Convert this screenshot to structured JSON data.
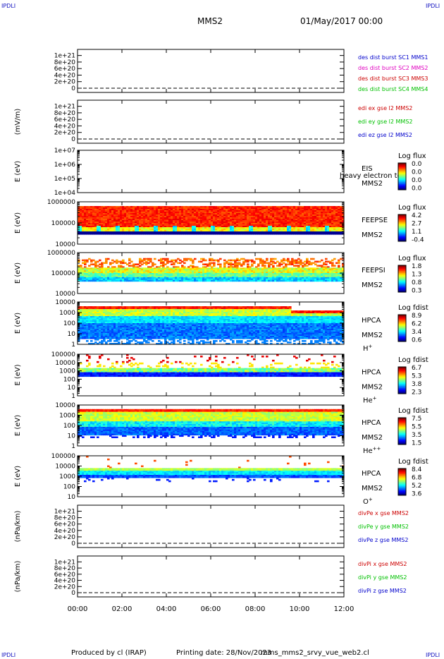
{
  "header": {
    "spacecraft": "MMS2",
    "datetime": "01/May/2017 00:00",
    "corner_label": "IPDLI"
  },
  "footer": {
    "produced_by": "Produced by cl (IRAP)",
    "printing_date": "Printing date: 28/Nov/2023",
    "script_name": "mms_mms2_srvy_vue_web2.cl"
  },
  "colors": {
    "red": "#cc0000",
    "magenta": "#e000c0",
    "green": "#00c000",
    "blue": "#0000cc",
    "axis": "#000000"
  },
  "x_axis": {
    "ticks": [
      "00:00",
      "02:00",
      "04:00",
      "06:00",
      "08:00",
      "10:00",
      "12:00"
    ],
    "range_hours": [
      0,
      12
    ]
  },
  "chart_data": [
    {
      "type": "line",
      "scale": "linear",
      "ylabel": "",
      "yticks": [
        "1e+21",
        "8e+20",
        "6e+20",
        "4e+20",
        "2e+20",
        "0"
      ],
      "ylim": [
        0,
        1.1e+21
      ],
      "legend": [
        {
          "text": "des dist burst SC1 MMS1",
          "color": "blue"
        },
        {
          "text": "des dist burst SC2 MMS2",
          "color": "magenta"
        },
        {
          "text": "des dist burst SC3 MMS3",
          "color": "red"
        },
        {
          "text": "des dist burst SC4 MMS4",
          "color": "green"
        }
      ],
      "zero_dashed": true
    },
    {
      "type": "line",
      "scale": "linear",
      "ylabel": "(mV/m)",
      "yticks": [
        "1e+21",
        "8e+20",
        "6e+20",
        "4e+20",
        "2e+20",
        "0"
      ],
      "ylim": [
        0,
        1.1e+21
      ],
      "legend": [
        {
          "text": "edi ex gse l2 MMS2",
          "color": "red"
        },
        {
          "text": "edi ey gse l2 MMS2",
          "color": "green"
        },
        {
          "text": "edi ez gse l2 MMS2",
          "color": "blue"
        }
      ],
      "zero_dashed": true
    },
    {
      "type": "heatmap",
      "scale": "log",
      "ylabel": "E (eV)",
      "yticks": [
        "1e+07",
        "1e+06",
        "1e+05",
        "1e+04"
      ],
      "instrument": "EIS",
      "sc": "MMS2",
      "overlay_text": "heavy electron tof",
      "cbar_title": "Log flux",
      "cbar_ticks": [
        "0.0",
        "0.0",
        "0.0",
        "0.0"
      ],
      "pattern": "empty"
    },
    {
      "type": "heatmap",
      "scale": "log",
      "ylabel": "E (eV)",
      "yticks": [
        "1000000",
        "100000",
        "10000"
      ],
      "instrument": "FEEPSE",
      "sc": "MMS2",
      "cbar_title": "Log flux",
      "cbar_ticks": [
        "4.2",
        "2.7",
        "1.1",
        "-0.4"
      ],
      "pattern": "feepse"
    },
    {
      "type": "heatmap",
      "scale": "log",
      "ylabel": "E (eV)",
      "yticks": [
        "1000000",
        "100000",
        "10000"
      ],
      "instrument": "FEEPSI",
      "sc": "MMS2",
      "cbar_title": "Log flux",
      "cbar_ticks": [
        "1.8",
        "1.3",
        "0.8",
        "0.3"
      ],
      "pattern": "feepsi"
    },
    {
      "type": "heatmap",
      "scale": "log",
      "ylabel": "E (eV)",
      "yticks": [
        "10000",
        "1000",
        "100",
        "10",
        "1"
      ],
      "instrument": "HPCA",
      "sc": "MMS2",
      "species": "H",
      "charge": "+",
      "cbar_title": "Log fdist",
      "cbar_ticks": [
        "8.9",
        "6.2",
        "3.4",
        "0.6"
      ],
      "pattern": "hplus"
    },
    {
      "type": "heatmap",
      "scale": "log",
      "ylabel": "E (eV)",
      "yticks": [
        "100000",
        "10000",
        "1000",
        "100",
        "10",
        "1"
      ],
      "instrument": "HPCA",
      "sc": "MMS2",
      "species": "He",
      "charge": "+",
      "cbar_title": "Log fdist",
      "cbar_ticks": [
        "6.7",
        "5.3",
        "3.8",
        "2.3"
      ],
      "pattern": "heplus"
    },
    {
      "type": "heatmap",
      "scale": "log",
      "ylabel": "E (eV)",
      "yticks": [
        "10000",
        "1000",
        "100",
        "10",
        "1"
      ],
      "instrument": "HPCA",
      "sc": "MMS2",
      "species": "He",
      "charge": "++",
      "cbar_title": "Log fdist",
      "cbar_ticks": [
        "7.5",
        "5.5",
        "3.5",
        "1.5"
      ],
      "pattern": "heplusplus"
    },
    {
      "type": "heatmap",
      "scale": "log",
      "ylabel": "E (eV)",
      "yticks": [
        "100000",
        "10000",
        "1000",
        "100",
        "10"
      ],
      "instrument": "HPCA",
      "sc": "MMS2",
      "species": "O",
      "charge": "+",
      "cbar_title": "Log fdist",
      "cbar_ticks": [
        "8.4",
        "6.8",
        "5.2",
        "3.6"
      ],
      "pattern": "oplus"
    },
    {
      "type": "line",
      "scale": "linear",
      "ylabel": "(nPa/km)",
      "yticks": [
        "1e+21",
        "8e+20",
        "6e+20",
        "4e+20",
        "2e+20",
        "0"
      ],
      "ylim": [
        0,
        1.1e+21
      ],
      "legend": [
        {
          "text": "divPe x gse MMS2",
          "color": "red"
        },
        {
          "text": "divPe y gse MMS2",
          "color": "green"
        },
        {
          "text": "divPe z gse MMS2",
          "color": "blue"
        }
      ],
      "zero_dashed": true
    },
    {
      "type": "line",
      "scale": "linear",
      "ylabel": "(nPa/km)",
      "yticks": [
        "1e+21",
        "8e+20",
        "6e+20",
        "4e+20",
        "2e+20",
        "0"
      ],
      "ylim": [
        0,
        1.1e+21
      ],
      "legend": [
        {
          "text": "divPi x gse MMS2",
          "color": "red"
        },
        {
          "text": "divPi y gse MMS2",
          "color": "green"
        },
        {
          "text": "divPi z gse MMS2",
          "color": "blue"
        }
      ],
      "zero_dashed": true
    }
  ]
}
